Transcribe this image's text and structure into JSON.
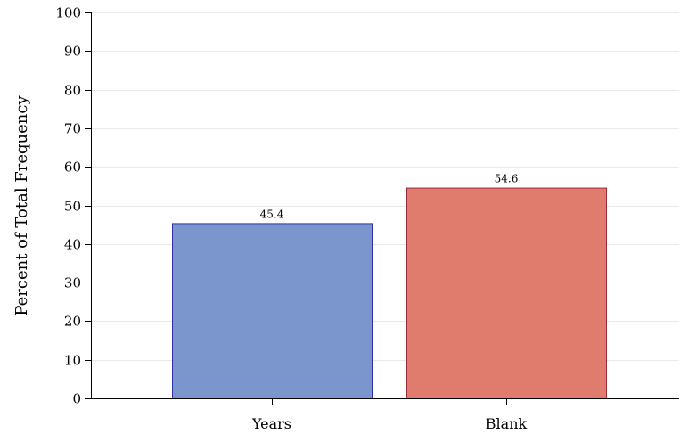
{
  "chart_data": {
    "type": "bar",
    "title": "",
    "xlabel": "",
    "ylabel": "Percent of Total Frequency",
    "categories": [
      "Years",
      "Blank"
    ],
    "values": [
      45.4,
      54.6
    ],
    "data_labels": [
      "45.4",
      "54.6"
    ],
    "ylim": [
      0,
      100
    ],
    "yticks": [
      0,
      10,
      20,
      30,
      40,
      50,
      60,
      70,
      80,
      90,
      100
    ],
    "grid": true,
    "legend": "none",
    "colors": {
      "bar_fills": [
        "#7b95cd",
        "#df7c6e"
      ],
      "bar_strokes": [
        "#2d2fa4",
        "#9b2b37"
      ],
      "grid": "#e9e9e9",
      "axis": "#000000",
      "text": "#000000"
    }
  }
}
